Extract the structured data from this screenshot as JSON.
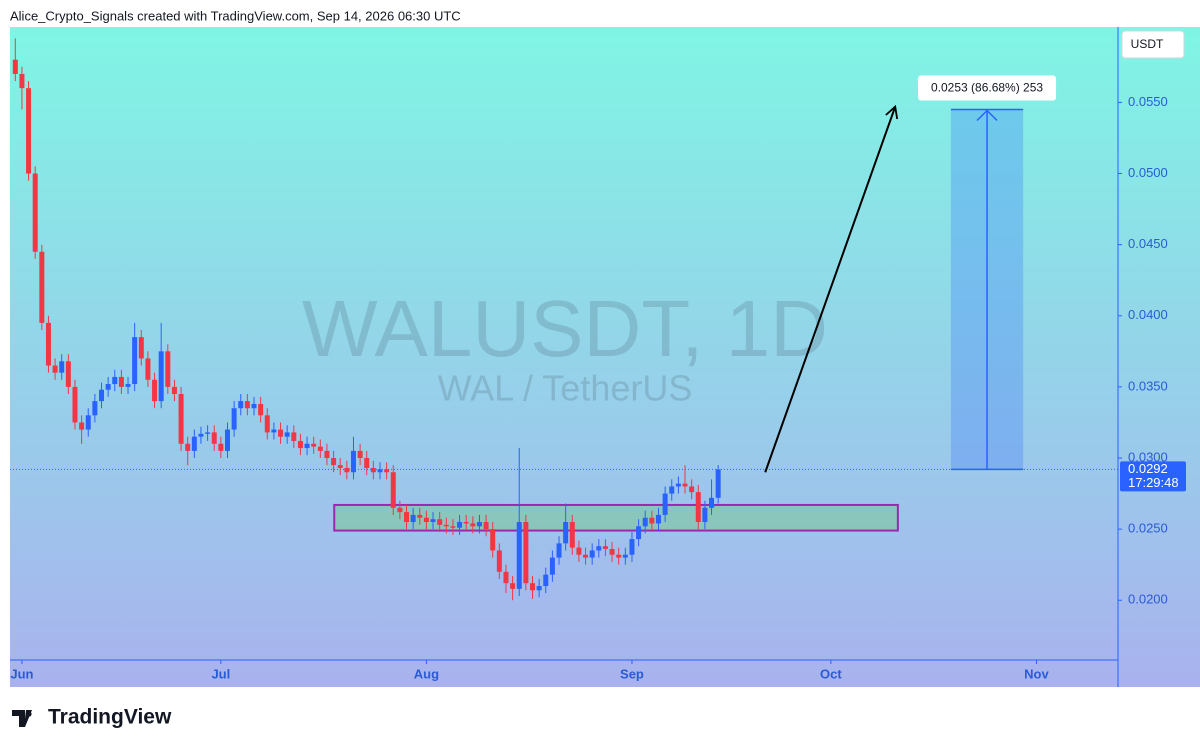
{
  "chart_data": {
    "type": "candlestick",
    "credit": "Alice_Crypto_Signals created with TradingView.com, Sep 14, 2026 06:30 UTC",
    "symbol": "WALUSDT, 1D",
    "description": "WAL / TetherUS",
    "currency": "USDT",
    "brand": "TradingView",
    "up_color": "#2962ff",
    "down_color": "#f23645",
    "x": [
      -1,
      0,
      1,
      2,
      3,
      4,
      5,
      6,
      7,
      8,
      9,
      10,
      11,
      12,
      13,
      14,
      15,
      16,
      17,
      18,
      19,
      20,
      21,
      22,
      23,
      24,
      25,
      26,
      27,
      28,
      29,
      30,
      31,
      32,
      33,
      34,
      35,
      36,
      37,
      38,
      39,
      40,
      41,
      42,
      43,
      44,
      45,
      46,
      47,
      48,
      49,
      50,
      51,
      52,
      53,
      54,
      55,
      56,
      57,
      58,
      59,
      60,
      61,
      62,
      63,
      64,
      65,
      66,
      67,
      68,
      69,
      70,
      71,
      72,
      73,
      74,
      75,
      76,
      77,
      78,
      79,
      80,
      81,
      82,
      83,
      84,
      85,
      86,
      87,
      88,
      89,
      90,
      91,
      92,
      93,
      94,
      95,
      96,
      97,
      98,
      99,
      100,
      101,
      102,
      103,
      104,
      105
    ],
    "open": [
      0.058,
      0.057,
      0.056,
      0.05,
      0.0445,
      0.0395,
      0.0365,
      0.036,
      0.0368,
      0.035,
      0.0325,
      0.032,
      0.033,
      0.034,
      0.0348,
      0.0352,
      0.0357,
      0.035,
      0.0352,
      0.0385,
      0.037,
      0.0355,
      0.034,
      0.0375,
      0.035,
      0.0345,
      0.031,
      0.0305,
      0.0315,
      0.0317,
      0.0318,
      0.031,
      0.0305,
      0.032,
      0.0335,
      0.034,
      0.0335,
      0.0338,
      0.033,
      0.0318,
      0.032,
      0.0315,
      0.0318,
      0.0312,
      0.0307,
      0.031,
      0.0308,
      0.0305,
      0.03,
      0.0295,
      0.0293,
      0.029,
      0.0305,
      0.03,
      0.0293,
      0.029,
      0.0292,
      0.029,
      0.0265,
      0.0262,
      0.0255,
      0.026,
      0.0258,
      0.0255,
      0.0257,
      0.0253,
      0.0252,
      0.0251,
      0.0255,
      0.0254,
      0.0252,
      0.0255,
      0.025,
      0.0235,
      0.022,
      0.0212,
      0.0208,
      0.0255,
      0.0212,
      0.0207,
      0.021,
      0.0218,
      0.023,
      0.024,
      0.0255,
      0.0237,
      0.0232,
      0.023,
      0.0235,
      0.0238,
      0.0236,
      0.0232,
      0.023,
      0.0232,
      0.0243,
      0.0252,
      0.0258,
      0.0254,
      0.026,
      0.0275,
      0.028,
      0.0282,
      0.028,
      0.0276,
      0.0255,
      0.0265,
      0.0272
    ],
    "high": [
      0.0595,
      0.0575,
      0.0565,
      0.0505,
      0.045,
      0.04,
      0.037,
      0.0373,
      0.0373,
      0.0355,
      0.033,
      0.0335,
      0.0345,
      0.0353,
      0.0357,
      0.0362,
      0.0362,
      0.0357,
      0.0395,
      0.039,
      0.0375,
      0.036,
      0.0395,
      0.038,
      0.0355,
      0.035,
      0.0315,
      0.032,
      0.0322,
      0.0323,
      0.0323,
      0.0315,
      0.0325,
      0.034,
      0.0345,
      0.0345,
      0.0343,
      0.0343,
      0.0335,
      0.0325,
      0.0325,
      0.0323,
      0.0323,
      0.0317,
      0.0315,
      0.0315,
      0.0313,
      0.031,
      0.0305,
      0.03,
      0.0298,
      0.0315,
      0.031,
      0.0305,
      0.0298,
      0.0297,
      0.0297,
      0.0295,
      0.027,
      0.0267,
      0.0265,
      0.0265,
      0.0263,
      0.0262,
      0.0262,
      0.0258,
      0.0257,
      0.026,
      0.026,
      0.0259,
      0.026,
      0.026,
      0.0255,
      0.024,
      0.0225,
      0.0217,
      0.0307,
      0.026,
      0.0217,
      0.0215,
      0.0223,
      0.0235,
      0.0245,
      0.0268,
      0.026,
      0.0242,
      0.0237,
      0.024,
      0.0243,
      0.0243,
      0.0241,
      0.0237,
      0.0237,
      0.0248,
      0.0257,
      0.0263,
      0.0263,
      0.0265,
      0.028,
      0.0285,
      0.0287,
      0.0295,
      0.0285,
      0.0281,
      0.027,
      0.0285,
      0.0295
    ],
    "low": [
      0.0565,
      0.0545,
      0.0495,
      0.044,
      0.039,
      0.036,
      0.0355,
      0.0355,
      0.0345,
      0.032,
      0.031,
      0.0315,
      0.0325,
      0.0335,
      0.0343,
      0.0347,
      0.0345,
      0.0345,
      0.0347,
      0.0365,
      0.035,
      0.0335,
      0.0335,
      0.0345,
      0.034,
      0.0305,
      0.0295,
      0.03,
      0.031,
      0.0312,
      0.0305,
      0.03,
      0.03,
      0.0315,
      0.033,
      0.033,
      0.033,
      0.0325,
      0.0313,
      0.0313,
      0.031,
      0.031,
      0.0307,
      0.0302,
      0.0302,
      0.0303,
      0.03,
      0.0295,
      0.029,
      0.0288,
      0.0285,
      0.0285,
      0.0295,
      0.0288,
      0.0285,
      0.0285,
      0.0285,
      0.026,
      0.0257,
      0.025,
      0.025,
      0.0253,
      0.025,
      0.025,
      0.0248,
      0.0247,
      0.0246,
      0.0246,
      0.0249,
      0.0247,
      0.0247,
      0.0245,
      0.023,
      0.0215,
      0.0205,
      0.02,
      0.0203,
      0.0207,
      0.0201,
      0.0202,
      0.0205,
      0.0213,
      0.0225,
      0.0235,
      0.0232,
      0.0227,
      0.0225,
      0.0225,
      0.023,
      0.0231,
      0.0227,
      0.0225,
      0.0225,
      0.0227,
      0.0238,
      0.0247,
      0.0249,
      0.0249,
      0.0255,
      0.027,
      0.0275,
      0.0275,
      0.0271,
      0.025,
      0.025,
      0.026,
      0.0268
    ],
    "close": [
      0.057,
      0.056,
      0.05,
      0.0445,
      0.0395,
      0.0365,
      0.036,
      0.0368,
      0.035,
      0.0325,
      0.032,
      0.033,
      0.034,
      0.0348,
      0.0352,
      0.0357,
      0.035,
      0.0352,
      0.0385,
      0.037,
      0.0355,
      0.034,
      0.0375,
      0.035,
      0.0345,
      0.031,
      0.0305,
      0.0315,
      0.0317,
      0.0318,
      0.031,
      0.0305,
      0.032,
      0.0335,
      0.034,
      0.0335,
      0.0338,
      0.033,
      0.0318,
      0.032,
      0.0315,
      0.0318,
      0.0312,
      0.0307,
      0.031,
      0.0308,
      0.0305,
      0.03,
      0.0295,
      0.0293,
      0.029,
      0.0305,
      0.03,
      0.0293,
      0.029,
      0.0292,
      0.029,
      0.0265,
      0.0262,
      0.0255,
      0.026,
      0.0258,
      0.0255,
      0.0257,
      0.0253,
      0.0252,
      0.0251,
      0.0255,
      0.0254,
      0.0252,
      0.0255,
      0.025,
      0.0235,
      0.022,
      0.0212,
      0.0208,
      0.0255,
      0.0212,
      0.0207,
      0.021,
      0.0218,
      0.023,
      0.024,
      0.0255,
      0.0237,
      0.0232,
      0.023,
      0.0235,
      0.0238,
      0.0236,
      0.0232,
      0.023,
      0.0232,
      0.0243,
      0.0252,
      0.0258,
      0.0254,
      0.026,
      0.0275,
      0.028,
      0.0282,
      0.028,
      0.0276,
      0.0255,
      0.0265,
      0.0272,
      0.0292
    ],
    "xlim": [
      -1.8,
      165.3
    ],
    "ylim": [
      0.0158,
      0.0603
    ],
    "xticks": [
      {
        "value": 0,
        "label": "Jun"
      },
      {
        "value": 30,
        "label": "Jul"
      },
      {
        "value": 61,
        "label": "Aug"
      },
      {
        "value": 92,
        "label": "Sep"
      },
      {
        "value": 122,
        "label": "Oct"
      },
      {
        "value": 153,
        "label": "Nov"
      }
    ],
    "yticks": [
      {
        "value": 0.02,
        "label": "0.0200"
      },
      {
        "value": 0.025,
        "label": "0.0250"
      },
      {
        "value": 0.03,
        "label": "0.0300"
      },
      {
        "value": 0.035,
        "label": "0.0350"
      },
      {
        "value": 0.04,
        "label": "0.0400"
      },
      {
        "value": 0.045,
        "label": "0.0450"
      },
      {
        "value": 0.05,
        "label": "0.0500"
      },
      {
        "value": 0.055,
        "label": "0.0550"
      }
    ],
    "last_price": {
      "value": 0.0292,
      "label": "0.0292"
    },
    "countdown": "17:29:48",
    "zone": {
      "x": [
        47.1,
        132.1
      ],
      "y": [
        0.0249,
        0.0267
      ]
    },
    "measure": {
      "x": [
        140.1,
        151
      ],
      "y": [
        0.0292,
        0.0545
      ],
      "label": "0.0253 (86.68%) 253"
    },
    "arrow": {
      "x": [
        112.1,
        131.7
      ],
      "y": [
        0.029,
        0.0547
      ]
    }
  }
}
